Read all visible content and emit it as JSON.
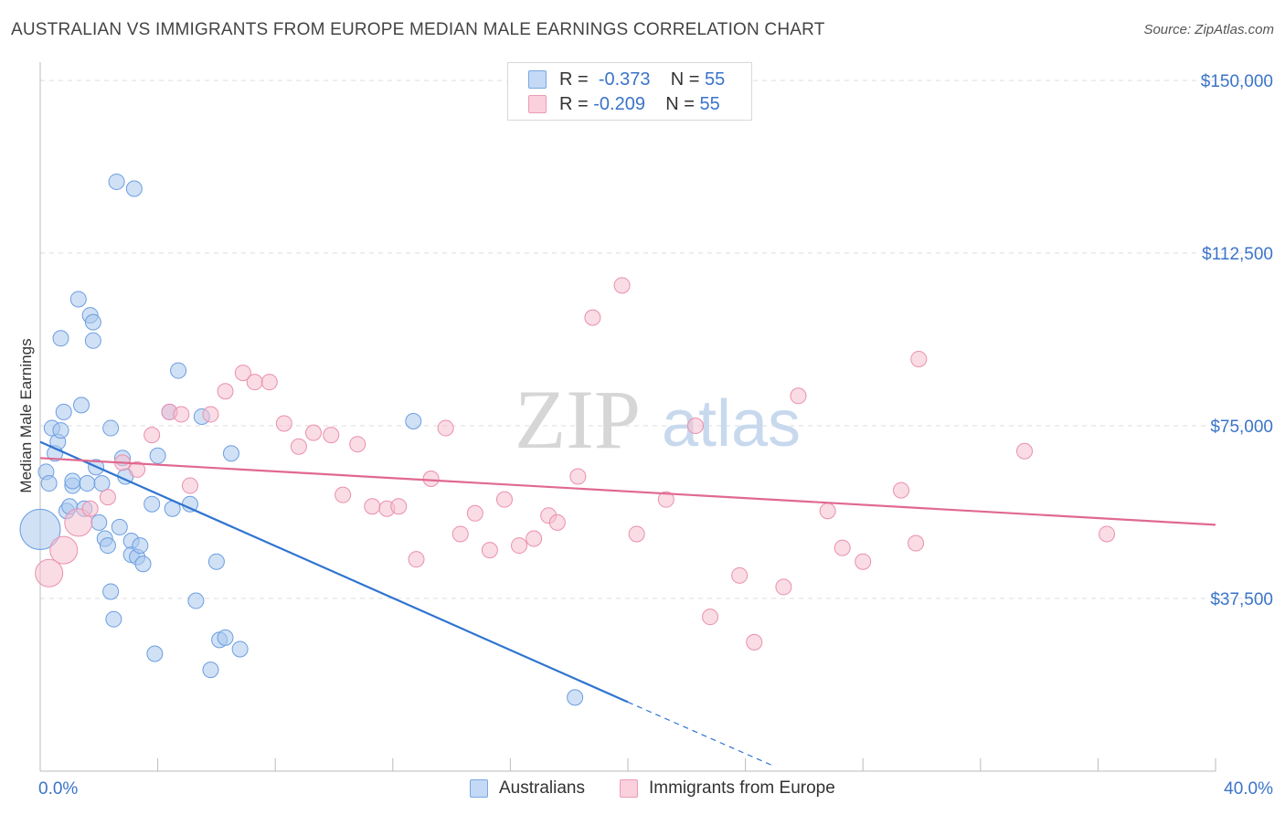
{
  "title": "AUSTRALIAN VS IMMIGRANTS FROM EUROPE MEDIAN MALE EARNINGS CORRELATION CHART",
  "source": "Source: ZipAtlas.com",
  "watermark": {
    "zip": "ZIP",
    "atlas": "atlas"
  },
  "colors": {
    "blue_fill": "#a9c8ef",
    "blue_stroke": "#6b9ee0",
    "blue_line": "#2f74d0",
    "pink_fill": "#f6bfd0",
    "pink_stroke": "#ea8fad",
    "pink_line": "#e0698f",
    "grid": "#dddddd",
    "axis_label": "#3a74c9"
  },
  "legend": {
    "rows": [
      {
        "r_label": "R =",
        "r_value": "-0.373",
        "n_label": "N =",
        "n_value": "55",
        "color": "#a9c8ef"
      },
      {
        "r_label": "R =",
        "r_value": "-0.209",
        "n_label": "N =",
        "n_value": "55",
        "color": "#f6bfd0"
      }
    ]
  },
  "chart_data": {
    "type": "scatter",
    "title": "AUSTRALIAN VS IMMIGRANTS FROM EUROPE MEDIAN MALE EARNINGS CORRELATION CHART",
    "xlabel": "",
    "ylabel": "Median Male Earnings",
    "xlim": [
      0,
      40
    ],
    "ylim": [
      0,
      152000
    ],
    "x_tick_labels": [
      "0.0%",
      "40.0%"
    ],
    "y_ticks": [
      37500,
      75000,
      112500,
      150000
    ],
    "y_tick_labels": [
      "$37,500",
      "$75,000",
      "$112,500",
      "$150,000"
    ],
    "grid": true,
    "series": [
      {
        "name": "Australians",
        "points": [
          [
            0.0,
            52500,
            3
          ],
          [
            0.2,
            65000,
            1
          ],
          [
            0.3,
            62500,
            1
          ],
          [
            0.4,
            74500,
            1
          ],
          [
            0.5,
            69000,
            1
          ],
          [
            0.6,
            71500,
            1
          ],
          [
            0.7,
            74000,
            1
          ],
          [
            0.7,
            94000,
            1
          ],
          [
            0.8,
            78000,
            1
          ],
          [
            0.9,
            56500,
            1
          ],
          [
            1.0,
            57500,
            1
          ],
          [
            1.1,
            62000,
            1
          ],
          [
            1.1,
            63000,
            1
          ],
          [
            1.3,
            102500,
            1
          ],
          [
            1.4,
            79500,
            1
          ],
          [
            1.5,
            57000,
            1
          ],
          [
            1.6,
            62500,
            1
          ],
          [
            1.7,
            99000,
            1
          ],
          [
            1.8,
            93500,
            1
          ],
          [
            1.8,
            97500,
            1
          ],
          [
            1.9,
            66000,
            1
          ],
          [
            2.0,
            54000,
            1
          ],
          [
            2.1,
            62500,
            1
          ],
          [
            2.2,
            50500,
            1
          ],
          [
            2.3,
            49000,
            1
          ],
          [
            2.4,
            74500,
            1
          ],
          [
            2.4,
            39000,
            1
          ],
          [
            2.5,
            33000,
            1
          ],
          [
            2.6,
            128000,
            1
          ],
          [
            2.7,
            53000,
            1
          ],
          [
            2.8,
            68000,
            1
          ],
          [
            2.9,
            64000,
            1
          ],
          [
            3.1,
            50000,
            1
          ],
          [
            3.1,
            47000,
            1
          ],
          [
            3.3,
            46500,
            1
          ],
          [
            3.4,
            49000,
            1
          ],
          [
            3.5,
            45000,
            1
          ],
          [
            3.2,
            126500,
            1
          ],
          [
            3.8,
            58000,
            1
          ],
          [
            3.9,
            25500,
            1
          ],
          [
            4.0,
            68500,
            1
          ],
          [
            4.4,
            78000,
            1
          ],
          [
            4.5,
            57000,
            1
          ],
          [
            4.7,
            87000,
            1
          ],
          [
            5.1,
            58000,
            1
          ],
          [
            5.3,
            37000,
            1
          ],
          [
            5.5,
            77000,
            1
          ],
          [
            5.8,
            22000,
            1
          ],
          [
            6.0,
            45500,
            1
          ],
          [
            6.1,
            28500,
            1
          ],
          [
            6.3,
            29000,
            1
          ],
          [
            6.5,
            69000,
            1
          ],
          [
            6.8,
            26500,
            1
          ],
          [
            12.7,
            76000,
            1
          ],
          [
            18.2,
            16000,
            1
          ]
        ]
      },
      {
        "name": "Immigrants from Europe",
        "points": [
          [
            0.3,
            43000,
            2
          ],
          [
            0.8,
            48000,
            2
          ],
          [
            1.3,
            54000,
            2
          ],
          [
            1.7,
            57000,
            1
          ],
          [
            2.3,
            59500,
            1
          ],
          [
            2.8,
            67000,
            1
          ],
          [
            3.3,
            65500,
            1
          ],
          [
            3.8,
            73000,
            1
          ],
          [
            4.4,
            78000,
            1
          ],
          [
            4.8,
            77500,
            1
          ],
          [
            5.1,
            62000,
            1
          ],
          [
            5.8,
            77500,
            1
          ],
          [
            6.3,
            82500,
            1
          ],
          [
            6.9,
            86500,
            1
          ],
          [
            7.3,
            84500,
            1
          ],
          [
            7.8,
            84500,
            1
          ],
          [
            8.3,
            75500,
            1
          ],
          [
            8.8,
            70500,
            1
          ],
          [
            9.3,
            73500,
            1
          ],
          [
            9.9,
            73000,
            1
          ],
          [
            10.3,
            60000,
            1
          ],
          [
            10.8,
            71000,
            1
          ],
          [
            11.3,
            57500,
            1
          ],
          [
            11.8,
            57000,
            1
          ],
          [
            12.2,
            57500,
            1
          ],
          [
            12.8,
            46000,
            1
          ],
          [
            13.3,
            63500,
            1
          ],
          [
            13.8,
            74500,
            1
          ],
          [
            14.3,
            51500,
            1
          ],
          [
            14.8,
            56000,
            1
          ],
          [
            15.3,
            48000,
            1
          ],
          [
            15.8,
            59000,
            1
          ],
          [
            16.3,
            49000,
            1
          ],
          [
            16.8,
            50500,
            1
          ],
          [
            17.3,
            55500,
            1
          ],
          [
            17.6,
            54000,
            1
          ],
          [
            18.3,
            64000,
            1
          ],
          [
            18.8,
            98500,
            1
          ],
          [
            19.8,
            105500,
            1
          ],
          [
            20.3,
            51500,
            1
          ],
          [
            21.3,
            59000,
            1
          ],
          [
            22.3,
            75000,
            1
          ],
          [
            22.8,
            33500,
            1
          ],
          [
            23.8,
            42500,
            1
          ],
          [
            24.3,
            28000,
            1
          ],
          [
            25.3,
            40000,
            1
          ],
          [
            25.8,
            81500,
            1
          ],
          [
            26.8,
            56500,
            1
          ],
          [
            27.3,
            48500,
            1
          ],
          [
            28.0,
            45500,
            1
          ],
          [
            29.3,
            61000,
            1
          ],
          [
            29.8,
            49500,
            1
          ],
          [
            29.9,
            89500,
            1
          ],
          [
            33.5,
            69500,
            1
          ],
          [
            36.3,
            51500,
            1
          ]
        ]
      }
    ],
    "trend_lines": [
      {
        "series": "Australians",
        "x_start": 0.0,
        "y_start": 71500,
        "x_end": 20.0,
        "y_end": 15000,
        "dashed_to_x": 25.0,
        "dashed_to_y": 1000
      },
      {
        "series": "Immigrants from Europe",
        "x_start": 0.0,
        "y_start": 68000,
        "x_end": 40.0,
        "y_end": 53500
      }
    ]
  }
}
